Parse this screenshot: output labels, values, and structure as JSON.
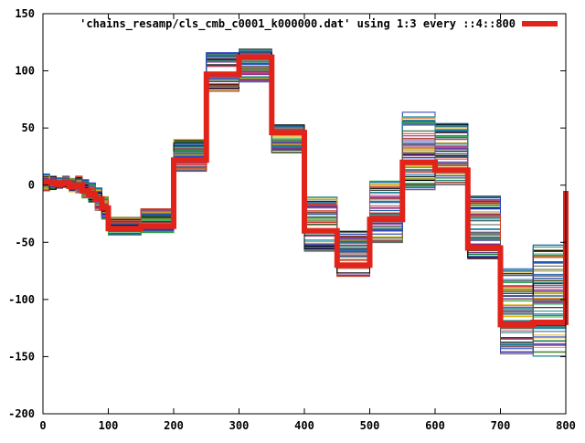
{
  "chart_data": {
    "type": "line",
    "title": "",
    "xlabel": "",
    "ylabel": "",
    "xlim": [
      0,
      800
    ],
    "ylim": [
      -200,
      150
    ],
    "grid": false,
    "legend_position": "top-right",
    "x_ticks": [
      0,
      100,
      200,
      300,
      400,
      500,
      600,
      700,
      800
    ],
    "y_ticks": [
      -200,
      -150,
      -100,
      -50,
      0,
      50,
      100,
      150
    ],
    "legend": [
      {
        "label": "'chains_resamp/cls_cmb_c0001_k000000.dat' using 1:3 every ::4::800",
        "color": "#e2231a"
      }
    ],
    "highlight_series": {
      "name": "'chains_resamp/cls_cmb_c0001_k000000.dat' using 1:3 every ::4::800",
      "color": "#e2231a",
      "step_edges": [
        0,
        10,
        20,
        30,
        40,
        50,
        60,
        70,
        80,
        90,
        100,
        150,
        200,
        250,
        300,
        350,
        400,
        450,
        500,
        550,
        600,
        650,
        700,
        750,
        800
      ],
      "values": [
        3,
        2,
        1,
        2,
        -1,
        0,
        -5,
        -8,
        -12,
        -20,
        -38,
        -36,
        22,
        97,
        112,
        46,
        -40,
        -70,
        -30,
        20,
        13,
        -55,
        -122,
        -120,
        -5
      ]
    },
    "background_samples": {
      "count": 80,
      "colors": [
        "#1b8a9e",
        "#7a1f8f",
        "#1fa84a",
        "#e8b81a",
        "#2343c9",
        "#000000",
        "#d43a22",
        "#5a5a5a",
        "#9b9b22",
        "#1a5fb4",
        "#c04080",
        "#208080"
      ],
      "step_edges": [
        0,
        10,
        20,
        30,
        40,
        50,
        60,
        70,
        80,
        90,
        100,
        150,
        200,
        250,
        300,
        350,
        400,
        450,
        500,
        550,
        600,
        650,
        700,
        750,
        800
      ],
      "low": [
        -5,
        -4,
        -3,
        -2,
        -6,
        -7,
        -12,
        -15,
        -22,
        -30,
        -44,
        -42,
        12,
        82,
        90,
        28,
        -58,
        -80,
        -52,
        -4,
        0,
        -65,
        -148,
        -150,
        -40
      ],
      "high": [
        10,
        8,
        7,
        8,
        6,
        8,
        5,
        2,
        -2,
        -8,
        -28,
        -20,
        40,
        116,
        120,
        53,
        -10,
        -40,
        5,
        64,
        55,
        -8,
        -72,
        -52,
        40
      ]
    }
  }
}
